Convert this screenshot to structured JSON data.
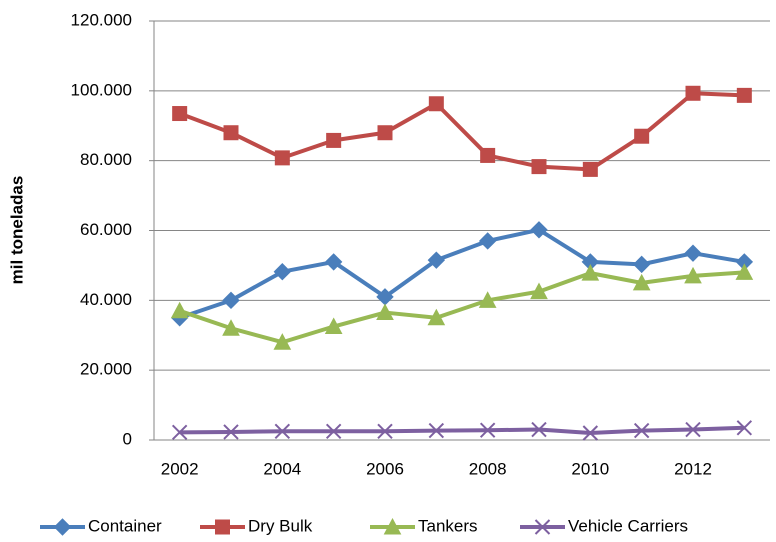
{
  "chart_data": {
    "type": "line",
    "y_label": "mil toneladas",
    "categories": [
      "2002",
      null,
      "2004",
      null,
      "2006",
      null,
      "2008",
      null,
      "2010",
      null,
      "2012",
      null
    ],
    "series": [
      {
        "name": "Container",
        "color": "#4a7ebb",
        "marker": "diamond",
        "values": [
          35000,
          40000,
          48200,
          51000,
          41000,
          51500,
          57000,
          60200,
          51000,
          50300,
          53500,
          51000
        ]
      },
      {
        "name": "Dry Bulk",
        "color": "#be4b48",
        "marker": "square",
        "values": [
          93500,
          88000,
          80800,
          85800,
          88000,
          96300,
          81500,
          78300,
          77500,
          87000,
          99300,
          98700
        ]
      },
      {
        "name": "Tankers",
        "color": "#98b954",
        "marker": "triangle",
        "values": [
          37000,
          32000,
          28000,
          32500,
          36500,
          35000,
          40000,
          42500,
          47800,
          45000,
          47000,
          48000
        ]
      },
      {
        "name": "Vehicle Carriers",
        "color": "#7d60a0",
        "marker": "x",
        "values": [
          2200,
          2300,
          2500,
          2500,
          2500,
          2700,
          2800,
          3000,
          2000,
          2700,
          3000,
          3500
        ]
      }
    ],
    "ylim": [
      0,
      120000
    ],
    "yticks": [
      0,
      {
        "value": 20000,
        "label": "20.000"
      },
      {
        "value": 40000,
        "label": "40.000"
      },
      {
        "value": 60000,
        "label": "60.000"
      },
      {
        "value": 80000,
        "label": "80.000"
      },
      {
        "value": 100000,
        "label": "100.000"
      },
      {
        "value": 120000,
        "label": "120.000"
      }
    ],
    "grid": true,
    "legend": "bottom"
  }
}
